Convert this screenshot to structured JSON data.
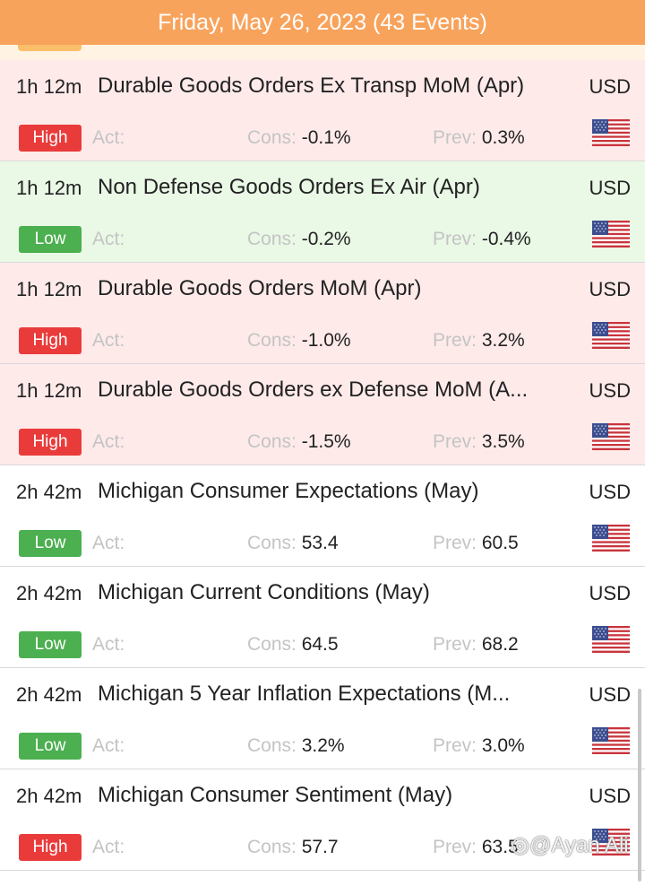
{
  "header": {
    "title": "Friday, May 26, 2023 (43 Events)"
  },
  "labels": {
    "act": "Act:",
    "cons": "Cons:",
    "prev": "Prev:"
  },
  "colors": {
    "header_bg": "#f8a35c",
    "high_badge": "#ea3b3b",
    "low_badge": "#4caf50",
    "high_row_bg": "#ffeaea",
    "low_row_bg": "#eaf8e6"
  },
  "events": [
    {
      "time": "1h 12m",
      "title": "Durable Goods Orders Ex Transp MoM (Apr)",
      "currency": "USD",
      "impact": "High",
      "act": "",
      "cons": "-0.1%",
      "prev": "0.3%",
      "icon": "us-flag-icon"
    },
    {
      "time": "1h 12m",
      "title": "Non Defense Goods Orders Ex Air (Apr)",
      "currency": "USD",
      "impact": "Low",
      "act": "",
      "cons": "-0.2%",
      "prev": "-0.4%",
      "icon": "us-flag-icon"
    },
    {
      "time": "1h 12m",
      "title": "Durable Goods Orders MoM (Apr)",
      "currency": "USD",
      "impact": "High",
      "act": "",
      "cons": "-1.0%",
      "prev": "3.2%",
      "icon": "us-flag-icon"
    },
    {
      "time": "1h 12m",
      "title": "Durable Goods Orders ex Defense MoM (A...",
      "currency": "USD",
      "impact": "High",
      "act": "",
      "cons": "-1.5%",
      "prev": "3.5%",
      "icon": "us-flag-icon"
    },
    {
      "time": "2h 42m",
      "title": "Michigan Consumer Expectations (May)",
      "currency": "USD",
      "impact": "Low",
      "act": "",
      "cons": "53.4",
      "prev": "60.5",
      "icon": "us-flag-icon"
    },
    {
      "time": "2h 42m",
      "title": "Michigan Current Conditions (May)",
      "currency": "USD",
      "impact": "Low",
      "act": "",
      "cons": "64.5",
      "prev": "68.2",
      "icon": "us-flag-icon"
    },
    {
      "time": "2h 42m",
      "title": "Michigan 5 Year Inflation Expectations (M...",
      "currency": "USD",
      "impact": "Low",
      "act": "",
      "cons": "3.2%",
      "prev": "3.0%",
      "icon": "us-flag-icon"
    },
    {
      "time": "2h 42m",
      "title": "Michigan Consumer Sentiment (May)",
      "currency": "USD",
      "impact": "High",
      "act": "",
      "cons": "57.7",
      "prev": "63.5",
      "icon": "us-flag-icon"
    }
  ],
  "watermark": "@Ayan Ali"
}
